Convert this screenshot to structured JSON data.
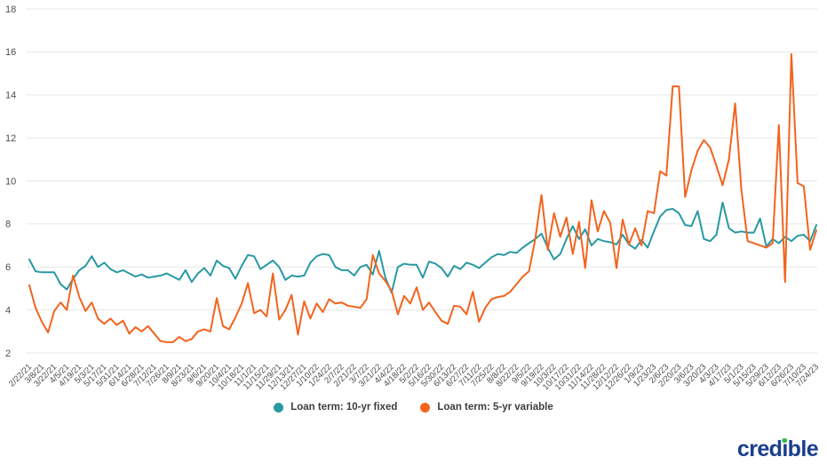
{
  "chart_data": {
    "type": "line",
    "title": "",
    "grid": "horizontal",
    "legend_position": "bottom-center",
    "ylim": [
      2,
      18
    ],
    "y_ticks": [
      2,
      4,
      6,
      8,
      10,
      12,
      14,
      16,
      18
    ],
    "points_per_label_interval": 2,
    "x_labels": [
      "2/22/21",
      "3/8/21",
      "3/22/21",
      "4/5/21",
      "4/19/21",
      "5/3/21",
      "5/17/21",
      "5/31/21",
      "6/14/21",
      "6/28/21",
      "7/12/21",
      "7/26/21",
      "8/9/21",
      "8/23/21",
      "9/6/21",
      "9/20/21",
      "10/4/21",
      "10/18/21",
      "11/1/21",
      "11/15/21",
      "11/29/21",
      "12/13/21",
      "12/27/21",
      "1/10/22",
      "1/24/22",
      "2/7/22",
      "2/21/22",
      "3/7/22",
      "3/21/22",
      "4/4/22",
      "4/18/22",
      "5/2/22",
      "5/16/22",
      "5/30/22",
      "6/13/22",
      "6/27/22",
      "7/11/22",
      "7/25/22",
      "8/8/22",
      "8/22/22",
      "9/5/22",
      "9/19/22",
      "10/3/22",
      "10/17/22",
      "10/31/22",
      "11/14/22",
      "11/28/22",
      "12/12/22",
      "12/26/22",
      "1/9/23",
      "1/23/23",
      "2/6/23",
      "2/20/23",
      "3/6/23",
      "3/20/23",
      "4/3/23",
      "4/17/23",
      "5/1/23",
      "5/15/23",
      "5/29/23",
      "6/12/23",
      "6/26/23",
      "7/10/23",
      "7/24/23"
    ],
    "series": [
      {
        "name": "Loan term: 10-yr fixed",
        "color": "#2899a3",
        "values": [
          6.35,
          5.8,
          5.75,
          5.75,
          5.75,
          5.2,
          4.95,
          5.45,
          5.85,
          6.05,
          6.5,
          6.0,
          6.2,
          5.9,
          5.75,
          5.85,
          5.7,
          5.55,
          5.65,
          5.5,
          5.55,
          5.6,
          5.7,
          5.55,
          5.4,
          5.85,
          5.3,
          5.7,
          5.95,
          5.6,
          6.3,
          6.05,
          5.95,
          5.45,
          6.05,
          6.55,
          6.5,
          5.9,
          6.1,
          6.3,
          6.0,
          5.4,
          5.6,
          5.55,
          5.6,
          6.2,
          6.5,
          6.6,
          6.55,
          6.0,
          5.85,
          5.85,
          5.6,
          6.0,
          6.1,
          5.65,
          6.75,
          5.5,
          4.8,
          6.0,
          6.15,
          6.1,
          6.1,
          5.5,
          6.25,
          6.15,
          5.95,
          5.55,
          6.05,
          5.9,
          6.2,
          6.1,
          5.95,
          6.2,
          6.45,
          6.6,
          6.55,
          6.7,
          6.65,
          6.9,
          7.1,
          7.3,
          7.55,
          6.9,
          6.35,
          6.6,
          7.3,
          7.9,
          7.3,
          7.75,
          7.0,
          7.3,
          7.2,
          7.15,
          7.05,
          7.5,
          7.05,
          6.85,
          7.25,
          6.9,
          7.65,
          8.35,
          8.65,
          8.7,
          8.5,
          7.95,
          7.9,
          8.6,
          7.3,
          7.2,
          7.5,
          9.0,
          7.8,
          7.6,
          7.65,
          7.6,
          7.6,
          8.25,
          6.95,
          7.3,
          7.1,
          7.4,
          7.2,
          7.45,
          7.5,
          7.2,
          7.95
        ]
      },
      {
        "name": "Loan term: 5-yr variable",
        "color": "#f2641e",
        "values": [
          5.15,
          4.1,
          3.45,
          2.95,
          3.95,
          4.35,
          4.0,
          5.6,
          4.6,
          3.95,
          4.35,
          3.6,
          3.35,
          3.6,
          3.3,
          3.5,
          2.9,
          3.2,
          3.0,
          3.25,
          2.9,
          2.55,
          2.5,
          2.5,
          2.75,
          2.55,
          2.65,
          3.0,
          3.1,
          3.0,
          4.55,
          3.25,
          3.1,
          3.65,
          4.3,
          5.25,
          3.85,
          4.0,
          3.7,
          5.7,
          3.55,
          4.0,
          4.7,
          2.85,
          4.4,
          3.6,
          4.3,
          3.9,
          4.5,
          4.3,
          4.35,
          4.2,
          4.15,
          4.1,
          4.5,
          6.55,
          5.7,
          5.35,
          4.9,
          3.8,
          4.65,
          4.3,
          5.05,
          4.0,
          4.35,
          3.9,
          3.5,
          3.35,
          4.2,
          4.15,
          3.8,
          4.85,
          3.45,
          4.1,
          4.5,
          4.6,
          4.65,
          4.85,
          5.2,
          5.55,
          5.8,
          7.3,
          9.35,
          6.8,
          8.5,
          7.4,
          8.3,
          6.6,
          8.1,
          5.95,
          9.1,
          7.65,
          8.6,
          8.05,
          5.95,
          8.2,
          7.05,
          7.8,
          7.0,
          8.6,
          8.5,
          10.45,
          10.25,
          14.4,
          14.4,
          9.25,
          10.5,
          11.4,
          11.9,
          11.55,
          10.7,
          9.8,
          11.0,
          13.6,
          9.6,
          7.2,
          7.1,
          7.0,
          6.9,
          7.1,
          12.6,
          5.3,
          15.9,
          9.9,
          9.75,
          6.8,
          7.7
        ]
      }
    ],
    "axis_style": {
      "grid_color": "#e6e6e6",
      "tick_label_color": "#4d4d4d"
    }
  },
  "legend": {
    "items": [
      {
        "label": "Loan term: 10-yr fixed",
        "color": "#2899a3"
      },
      {
        "label": "Loan term: 5-yr variable",
        "color": "#f2641e"
      }
    ]
  },
  "branding": {
    "logo_text": "credible",
    "logo_pre": "cred",
    "logo_i": "ı",
    "logo_post": "ble",
    "logo_color": "#1a3e8f",
    "logo_dot_color": "#3bb54a"
  }
}
